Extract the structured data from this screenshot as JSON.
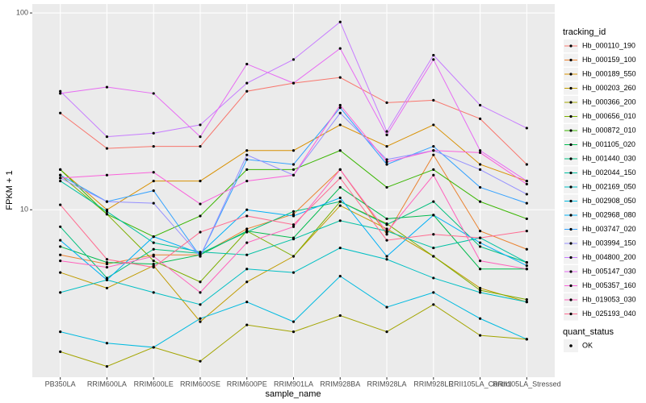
{
  "chart_data": {
    "type": "line",
    "y_label": "FPKM + 1",
    "x_label": "sample_name",
    "yscale": "log",
    "grid": true,
    "legend": "right",
    "legend_title": "tracking_id",
    "marker_legend_title": "quant_status",
    "marker_legend_labels": [
      "OK"
    ],
    "marker_color": "#000000",
    "categories": [
      "PB350LA",
      "RRIM600LA",
      "RRIM600LE",
      "RRIM600SE",
      "RRIM600PE",
      "RRIM901LA",
      "RRIM928BA",
      "RRIM928LA",
      "RRIM928LE",
      "RRII105LA_Control",
      "RRII105LA_Stressed"
    ],
    "ylim": [
      1.41,
      111
    ],
    "yticks": [
      10,
      100
    ],
    "series": [
      {
        "name": "Hb_000110_190",
        "color": "#F8766D",
        "values": [
          31,
          20.5,
          21,
          21,
          40,
          44,
          47,
          35,
          36,
          29,
          17
        ]
      },
      {
        "name": "Hb_000159_100",
        "color": "#EA8331",
        "values": [
          5.9,
          5.3,
          5.9,
          5.9,
          8.0,
          9.5,
          16,
          7.5,
          19,
          7.8,
          6.3
        ]
      },
      {
        "name": "Hb_000189_550",
        "color": "#D89000",
        "values": [
          16,
          10,
          14,
          14,
          20,
          20,
          27,
          21,
          27,
          17,
          14
        ]
      },
      {
        "name": "Hb_000203_260",
        "color": "#C09B00",
        "values": [
          4.8,
          4.0,
          5.2,
          2.7,
          4.3,
          5.8,
          10.5,
          8.0,
          5.8,
          4.0,
          3.4
        ]
      },
      {
        "name": "Hb_000366_200",
        "color": "#A3A500",
        "values": [
          1.9,
          1.6,
          2.0,
          1.7,
          2.6,
          2.4,
          2.9,
          2.4,
          3.3,
          2.3,
          2.2
        ]
      },
      {
        "name": "Hb_000656_010",
        "color": "#7CAE00",
        "values": [
          15,
          9.5,
          5.5,
          4.3,
          7.8,
          5.8,
          11,
          8.5,
          5.8,
          3.9,
          3.5
        ]
      },
      {
        "name": "Hb_000872_010",
        "color": "#39B600",
        "values": [
          16,
          9.5,
          7.3,
          9.3,
          16,
          16,
          20,
          13,
          16,
          11,
          9
        ]
      },
      {
        "name": "Hb_001105_020",
        "color": "#00BB4E",
        "values": [
          6.5,
          5.4,
          5.3,
          5.9,
          7.8,
          7.2,
          13,
          9,
          9.4,
          5.0,
          5.0
        ]
      },
      {
        "name": "Hb_001440_030",
        "color": "#00BF7D",
        "values": [
          8.2,
          4.5,
          6.3,
          6,
          7.7,
          9.8,
          11,
          8.4,
          11,
          6.5,
          5.4
        ]
      },
      {
        "name": "Hb_002044_150",
        "color": "#00C1A3",
        "values": [
          14,
          9.8,
          6.8,
          6.1,
          5.9,
          7.1,
          8.8,
          7.8,
          6.4,
          7.2,
          5.4
        ]
      },
      {
        "name": "Hb_002169_050",
        "color": "#00BFC4",
        "values": [
          3.8,
          4.4,
          3.8,
          3.3,
          5,
          4.8,
          6.4,
          5.6,
          4.5,
          3.8,
          3.4
        ]
      },
      {
        "name": "Hb_002908_050",
        "color": "#00BAE0",
        "values": [
          2.4,
          2.1,
          2.0,
          2.8,
          3.4,
          2.7,
          4.6,
          3.2,
          3.8,
          2.8,
          2.2
        ]
      },
      {
        "name": "Hb_002968_080",
        "color": "#00B0F6",
        "values": [
          7,
          4.4,
          7.3,
          6,
          10,
          9.3,
          11.5,
          5.8,
          9.4,
          6.8,
          5.2
        ]
      },
      {
        "name": "Hb_003747_020",
        "color": "#35A2FF",
        "values": [
          15,
          11,
          12.5,
          5.8,
          18,
          17,
          33,
          17,
          21,
          13,
          10.8
        ]
      },
      {
        "name": "Hb_003994_150",
        "color": "#9590FF",
        "values": [
          14.5,
          11,
          10.8,
          5.8,
          19,
          15,
          31,
          18,
          20,
          16,
          12
        ]
      },
      {
        "name": "Hb_004800_200",
        "color": "#C77CFF",
        "values": [
          40,
          23.5,
          24.5,
          27,
          44,
          58,
          90,
          25,
          61,
          34,
          26
        ]
      },
      {
        "name": "Hb_005147_030",
        "color": "#E76BF3",
        "values": [
          39,
          42,
          39,
          23.5,
          55,
          44,
          66,
          24,
          58,
          20,
          14
        ]
      },
      {
        "name": "Hb_005357_160",
        "color": "#FA62DB",
        "values": [
          14.5,
          15,
          15.5,
          10.7,
          14,
          15,
          34,
          17.5,
          20,
          19.5,
          13.5
        ]
      },
      {
        "name": "Hb_019053_030",
        "color": "#FF62BC",
        "values": [
          5.5,
          5.1,
          5.8,
          3.8,
          6.8,
          8.2,
          16,
          7.7,
          15,
          5.5,
          5
        ]
      },
      {
        "name": "Hb_025193_040",
        "color": "#FF6C91",
        "values": [
          10.6,
          5.6,
          5.1,
          7.7,
          9.3,
          8.4,
          14.5,
          7,
          7.5,
          7.2,
          7.8
        ]
      }
    ]
  }
}
